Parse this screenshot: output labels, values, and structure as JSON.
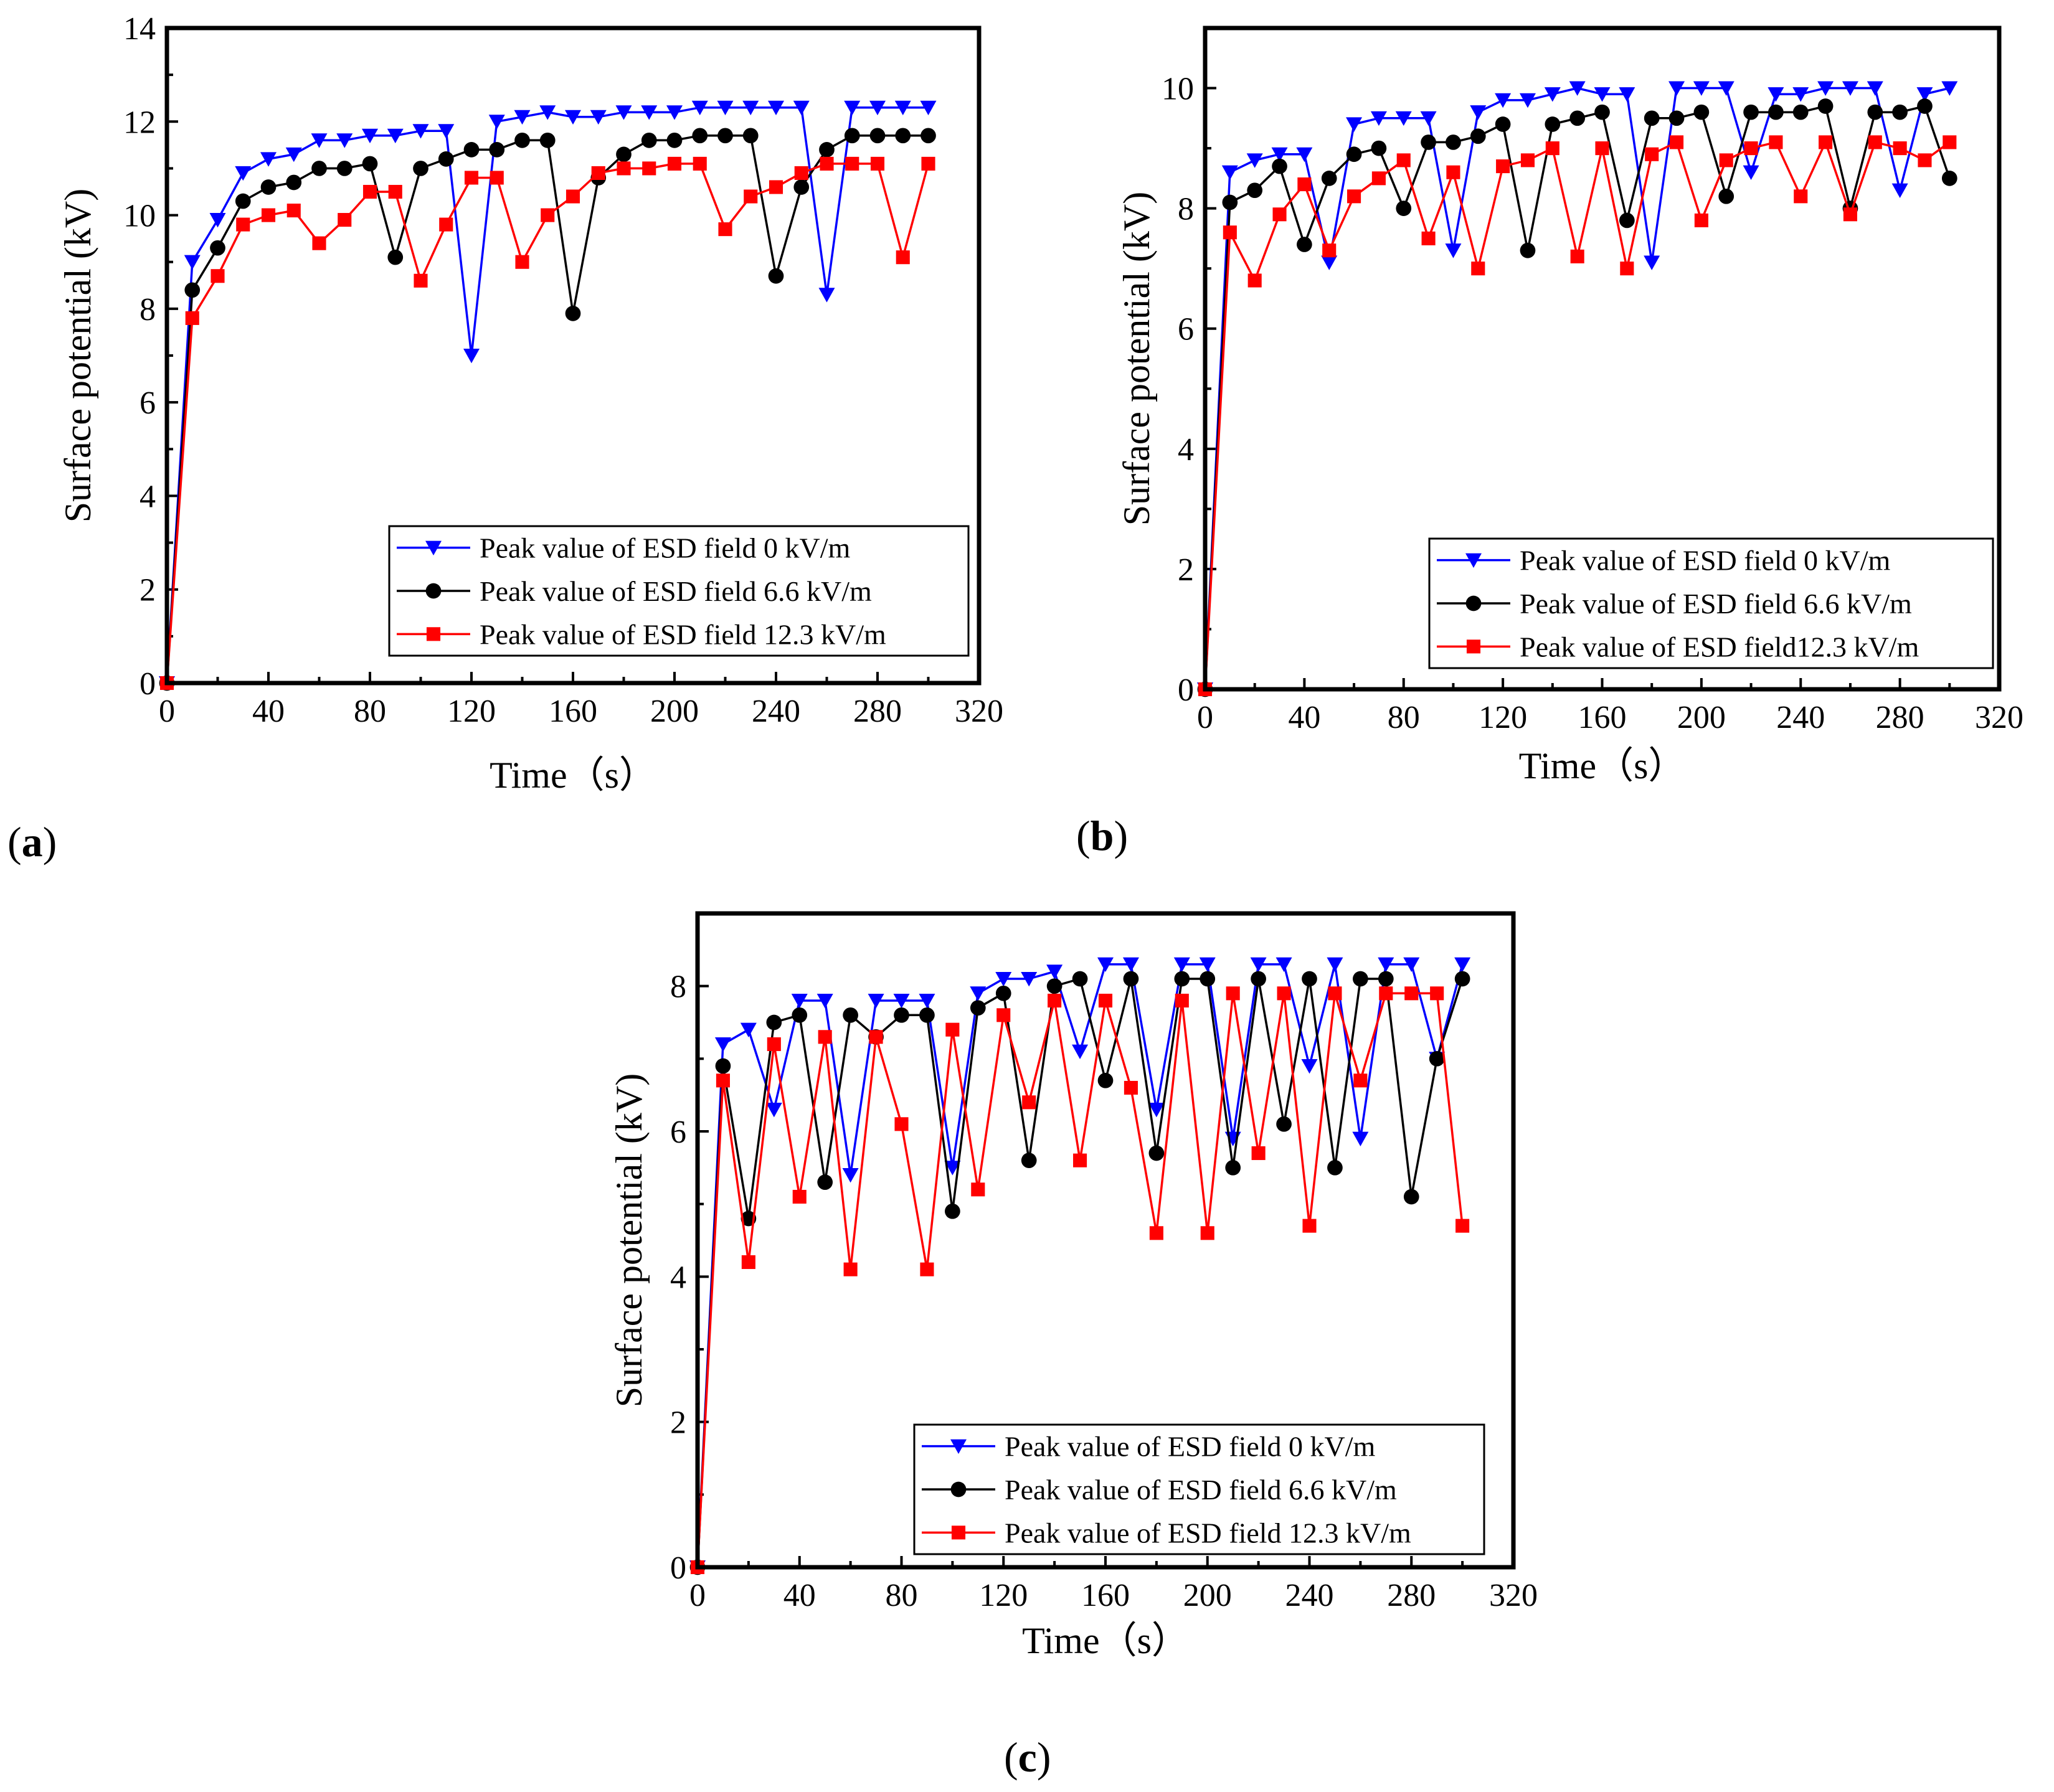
{
  "colors": {
    "s0": "#0000ff",
    "s1": "#000000",
    "s2": "#ff0000",
    "axis": "#000000",
    "background": "#ffffff"
  },
  "chart_data": [
    {
      "type": "line",
      "panel_label": "(a)",
      "panel_letter": "a",
      "xlabel": "Time（s）",
      "ylabel": "Surface potential (kV)",
      "xlim": [
        0,
        320
      ],
      "ylim": [
        0,
        14
      ],
      "xticks": [
        "0",
        "40",
        "80",
        "120",
        "160",
        "200",
        "240",
        "280",
        "320"
      ],
      "yticks": [
        "0",
        "2",
        "4",
        "6",
        "8",
        "10",
        "12",
        "14"
      ],
      "legend_position": "bottom-right",
      "series": [
        {
          "name": "Peak value of ESD field  0 kV/m",
          "marker": "triangle-down",
          "color": "#0000ff",
          "x": [
            0,
            10,
            20,
            30,
            40,
            50,
            60,
            70,
            80,
            90,
            100,
            110,
            120,
            130,
            140,
            150,
            160,
            170,
            180,
            190,
            200,
            210,
            220,
            230,
            240,
            250,
            260,
            270,
            280,
            290,
            300
          ],
          "y": [
            0,
            9.0,
            9.9,
            10.9,
            11.2,
            11.3,
            11.6,
            11.6,
            11.7,
            11.7,
            11.8,
            11.8,
            7.0,
            12.0,
            12.1,
            12.2,
            12.1,
            12.1,
            12.2,
            12.2,
            12.2,
            12.3,
            12.3,
            12.3,
            12.3,
            12.3,
            8.3,
            12.3,
            12.3,
            12.3,
            12.3
          ]
        },
        {
          "name": "Peak value of ESD field 6.6 kV/m",
          "marker": "circle",
          "color": "#000000",
          "x": [
            0,
            10,
            20,
            30,
            40,
            50,
            60,
            70,
            80,
            90,
            100,
            110,
            120,
            130,
            140,
            150,
            160,
            170,
            180,
            190,
            200,
            210,
            220,
            230,
            240,
            250,
            260,
            270,
            280,
            290,
            300
          ],
          "y": [
            0,
            8.4,
            9.3,
            10.3,
            10.6,
            10.7,
            11.0,
            11.0,
            11.1,
            9.1,
            11.0,
            11.2,
            11.4,
            11.4,
            11.6,
            11.6,
            7.9,
            10.8,
            11.3,
            11.6,
            11.6,
            11.7,
            11.7,
            11.7,
            8.7,
            10.6,
            11.4,
            11.7,
            11.7,
            11.7,
            11.7
          ]
        },
        {
          "name": "Peak value of ESD field 12.3 kV/m",
          "marker": "square",
          "color": "#ff0000",
          "x": [
            0,
            10,
            20,
            30,
            40,
            50,
            60,
            70,
            80,
            90,
            100,
            110,
            120,
            130,
            140,
            150,
            160,
            170,
            180,
            190,
            200,
            210,
            220,
            230,
            240,
            250,
            260,
            270,
            280,
            290,
            300
          ],
          "y": [
            0,
            7.8,
            8.7,
            9.8,
            10.0,
            10.1,
            9.4,
            9.9,
            10.5,
            10.5,
            8.6,
            9.8,
            10.8,
            10.8,
            9.0,
            10.0,
            10.4,
            10.9,
            11.0,
            11.0,
            11.1,
            11.1,
            9.7,
            10.4,
            10.6,
            10.9,
            11.1,
            11.1,
            11.1,
            9.1,
            11.1
          ]
        }
      ]
    },
    {
      "type": "line",
      "panel_label": "(b)",
      "panel_letter": "b",
      "xlabel": "Time（s）",
      "ylabel": "Surface potential (kV)",
      "xlim": [
        0,
        320
      ],
      "ylim": [
        0,
        11
      ],
      "xticks": [
        "0",
        "40",
        "80",
        "120",
        "160",
        "200",
        "240",
        "280",
        "320"
      ],
      "yticks": [
        "0",
        "2",
        "4",
        "6",
        "8",
        "10"
      ],
      "legend_position": "bottom-right",
      "series": [
        {
          "name": "Peak value of ESD field 0 kV/m",
          "marker": "triangle-down",
          "color": "#0000ff",
          "x": [
            0,
            10,
            20,
            30,
            40,
            50,
            60,
            70,
            80,
            90,
            100,
            110,
            120,
            130,
            140,
            150,
            160,
            170,
            180,
            190,
            200,
            210,
            220,
            230,
            240,
            250,
            260,
            270,
            280,
            290,
            300
          ],
          "y": [
            0,
            8.6,
            8.8,
            8.9,
            8.9,
            7.1,
            9.4,
            9.5,
            9.5,
            9.5,
            7.3,
            9.6,
            9.8,
            9.8,
            9.9,
            10.0,
            9.9,
            9.9,
            7.1,
            10.0,
            10.0,
            10.0,
            8.6,
            9.9,
            9.9,
            10.0,
            10.0,
            10.0,
            8.3,
            9.9,
            10.0
          ]
        },
        {
          "name": "Peak value of ESD field 6.6 kV/m",
          "marker": "circle",
          "color": "#000000",
          "x": [
            0,
            10,
            20,
            30,
            40,
            50,
            60,
            70,
            80,
            90,
            100,
            110,
            120,
            130,
            140,
            150,
            160,
            170,
            180,
            190,
            200,
            210,
            220,
            230,
            240,
            250,
            260,
            270,
            280,
            290,
            300
          ],
          "y": [
            0,
            8.1,
            8.3,
            8.7,
            7.4,
            8.5,
            8.9,
            9.0,
            8.0,
            9.1,
            9.1,
            9.2,
            9.4,
            7.3,
            9.4,
            9.5,
            9.6,
            7.8,
            9.5,
            9.5,
            9.6,
            8.2,
            9.6,
            9.6,
            9.6,
            9.7,
            8.0,
            9.6,
            9.6,
            9.7,
            8.5
          ]
        },
        {
          "name": "Peak value of ESD field12.3 kV/m",
          "marker": "square",
          "color": "#ff0000",
          "x": [
            0,
            10,
            20,
            30,
            40,
            50,
            60,
            70,
            80,
            90,
            100,
            110,
            120,
            130,
            140,
            150,
            160,
            170,
            180,
            190,
            200,
            210,
            220,
            230,
            240,
            250,
            260,
            270,
            280,
            290,
            300
          ],
          "y": [
            0,
            7.6,
            6.8,
            7.9,
            8.4,
            7.3,
            8.2,
            8.5,
            8.8,
            7.5,
            8.6,
            7.0,
            8.7,
            8.8,
            9.0,
            7.2,
            9.0,
            7.0,
            8.9,
            9.1,
            7.8,
            8.8,
            9.0,
            9.1,
            8.2,
            9.1,
            7.9,
            9.1,
            9.0,
            8.8,
            9.1
          ]
        }
      ]
    },
    {
      "type": "line",
      "panel_label": "(c)",
      "panel_letter": "c",
      "xlabel": "Time（s）",
      "ylabel": "Surface potential (kV)",
      "xlim": [
        0,
        320
      ],
      "ylim": [
        0,
        9
      ],
      "xticks": [
        "0",
        "40",
        "80",
        "120",
        "160",
        "200",
        "240",
        "280",
        "320"
      ],
      "yticks": [
        "0",
        "2",
        "4",
        "6",
        "8"
      ],
      "legend_position": "bottom-right",
      "series": [
        {
          "name": "Peak value of ESD field 0 kV/m",
          "marker": "triangle-down",
          "color": "#0000ff",
          "x": [
            0,
            10,
            20,
            30,
            40,
            50,
            60,
            70,
            80,
            90,
            100,
            110,
            120,
            130,
            140,
            150,
            160,
            170,
            180,
            190,
            200,
            210,
            220,
            230,
            240,
            250,
            260,
            270,
            280,
            290,
            300
          ],
          "y": [
            0,
            7.2,
            7.4,
            6.3,
            7.8,
            7.8,
            5.4,
            7.8,
            7.8,
            7.8,
            5.5,
            7.9,
            8.1,
            8.1,
            8.2,
            7.1,
            8.3,
            8.3,
            6.3,
            8.3,
            8.3,
            5.9,
            8.3,
            8.3,
            6.9,
            8.3,
            5.9,
            8.3,
            8.3,
            7.0,
            8.3
          ]
        },
        {
          "name": "Peak value of ESD field 6.6 kV/m",
          "marker": "circle",
          "color": "#000000",
          "x": [
            0,
            10,
            20,
            30,
            40,
            50,
            60,
            70,
            80,
            90,
            100,
            110,
            120,
            130,
            140,
            150,
            160,
            170,
            180,
            190,
            200,
            210,
            220,
            230,
            240,
            250,
            260,
            270,
            280,
            290,
            300
          ],
          "y": [
            0,
            6.9,
            4.8,
            7.5,
            7.6,
            5.3,
            7.6,
            7.3,
            7.6,
            7.6,
            4.9,
            7.7,
            7.9,
            5.6,
            8.0,
            8.1,
            6.7,
            8.1,
            5.7,
            8.1,
            8.1,
            5.5,
            8.1,
            6.1,
            8.1,
            5.5,
            8.1,
            8.1,
            5.1,
            7.0,
            8.1
          ]
        },
        {
          "name": "Peak value of ESD field 12.3 kV/m",
          "marker": "square",
          "color": "#ff0000",
          "x": [
            0,
            10,
            20,
            30,
            40,
            50,
            60,
            70,
            80,
            90,
            100,
            110,
            120,
            130,
            140,
            150,
            160,
            170,
            180,
            190,
            200,
            210,
            220,
            230,
            240,
            250,
            260,
            270,
            280,
            290,
            300
          ],
          "y": [
            0,
            6.7,
            4.2,
            7.2,
            5.1,
            7.3,
            4.1,
            7.3,
            6.1,
            4.1,
            7.4,
            5.2,
            7.6,
            6.4,
            7.8,
            5.6,
            7.8,
            6.6,
            4.6,
            7.8,
            4.6,
            7.9,
            5.7,
            7.9,
            4.7,
            7.9,
            6.7,
            7.9,
            7.9,
            7.9,
            4.7
          ]
        }
      ]
    }
  ]
}
